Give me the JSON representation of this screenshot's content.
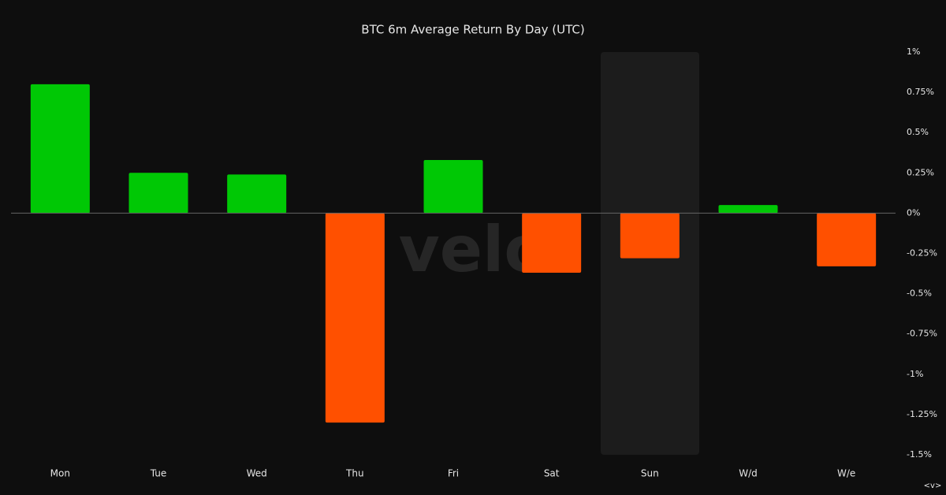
{
  "chart_data": {
    "type": "bar",
    "title": "BTC 6m Average Return By Day (UTC)",
    "categories": [
      "Mon",
      "Tue",
      "Wed",
      "Thu",
      "Fri",
      "Sat",
      "Sun",
      "W/d",
      "W/e"
    ],
    "values": [
      0.8,
      0.25,
      0.24,
      -1.3,
      0.33,
      -0.37,
      -0.28,
      0.05,
      -0.33
    ],
    "positive_color": "#00c805",
    "negative_color": "#ff5000",
    "ylim": [
      -1.5,
      1
    ],
    "yticks": [
      {
        "value": 1,
        "label": "1%"
      },
      {
        "value": 0.75,
        "label": "0.75%"
      },
      {
        "value": 0.5,
        "label": "0.5%"
      },
      {
        "value": 0.25,
        "label": "0.25%"
      },
      {
        "value": 0,
        "label": "0%"
      },
      {
        "value": -0.25,
        "label": "-0.25%"
      },
      {
        "value": -0.5,
        "label": "-0.5%"
      },
      {
        "value": -0.75,
        "label": "-0.75%"
      },
      {
        "value": -1,
        "label": "-1%"
      },
      {
        "value": -1.25,
        "label": "-1.25%"
      },
      {
        "value": -1.5,
        "label": "-1.5%"
      }
    ],
    "watermark": "velo",
    "corner_label": "<v>"
  }
}
